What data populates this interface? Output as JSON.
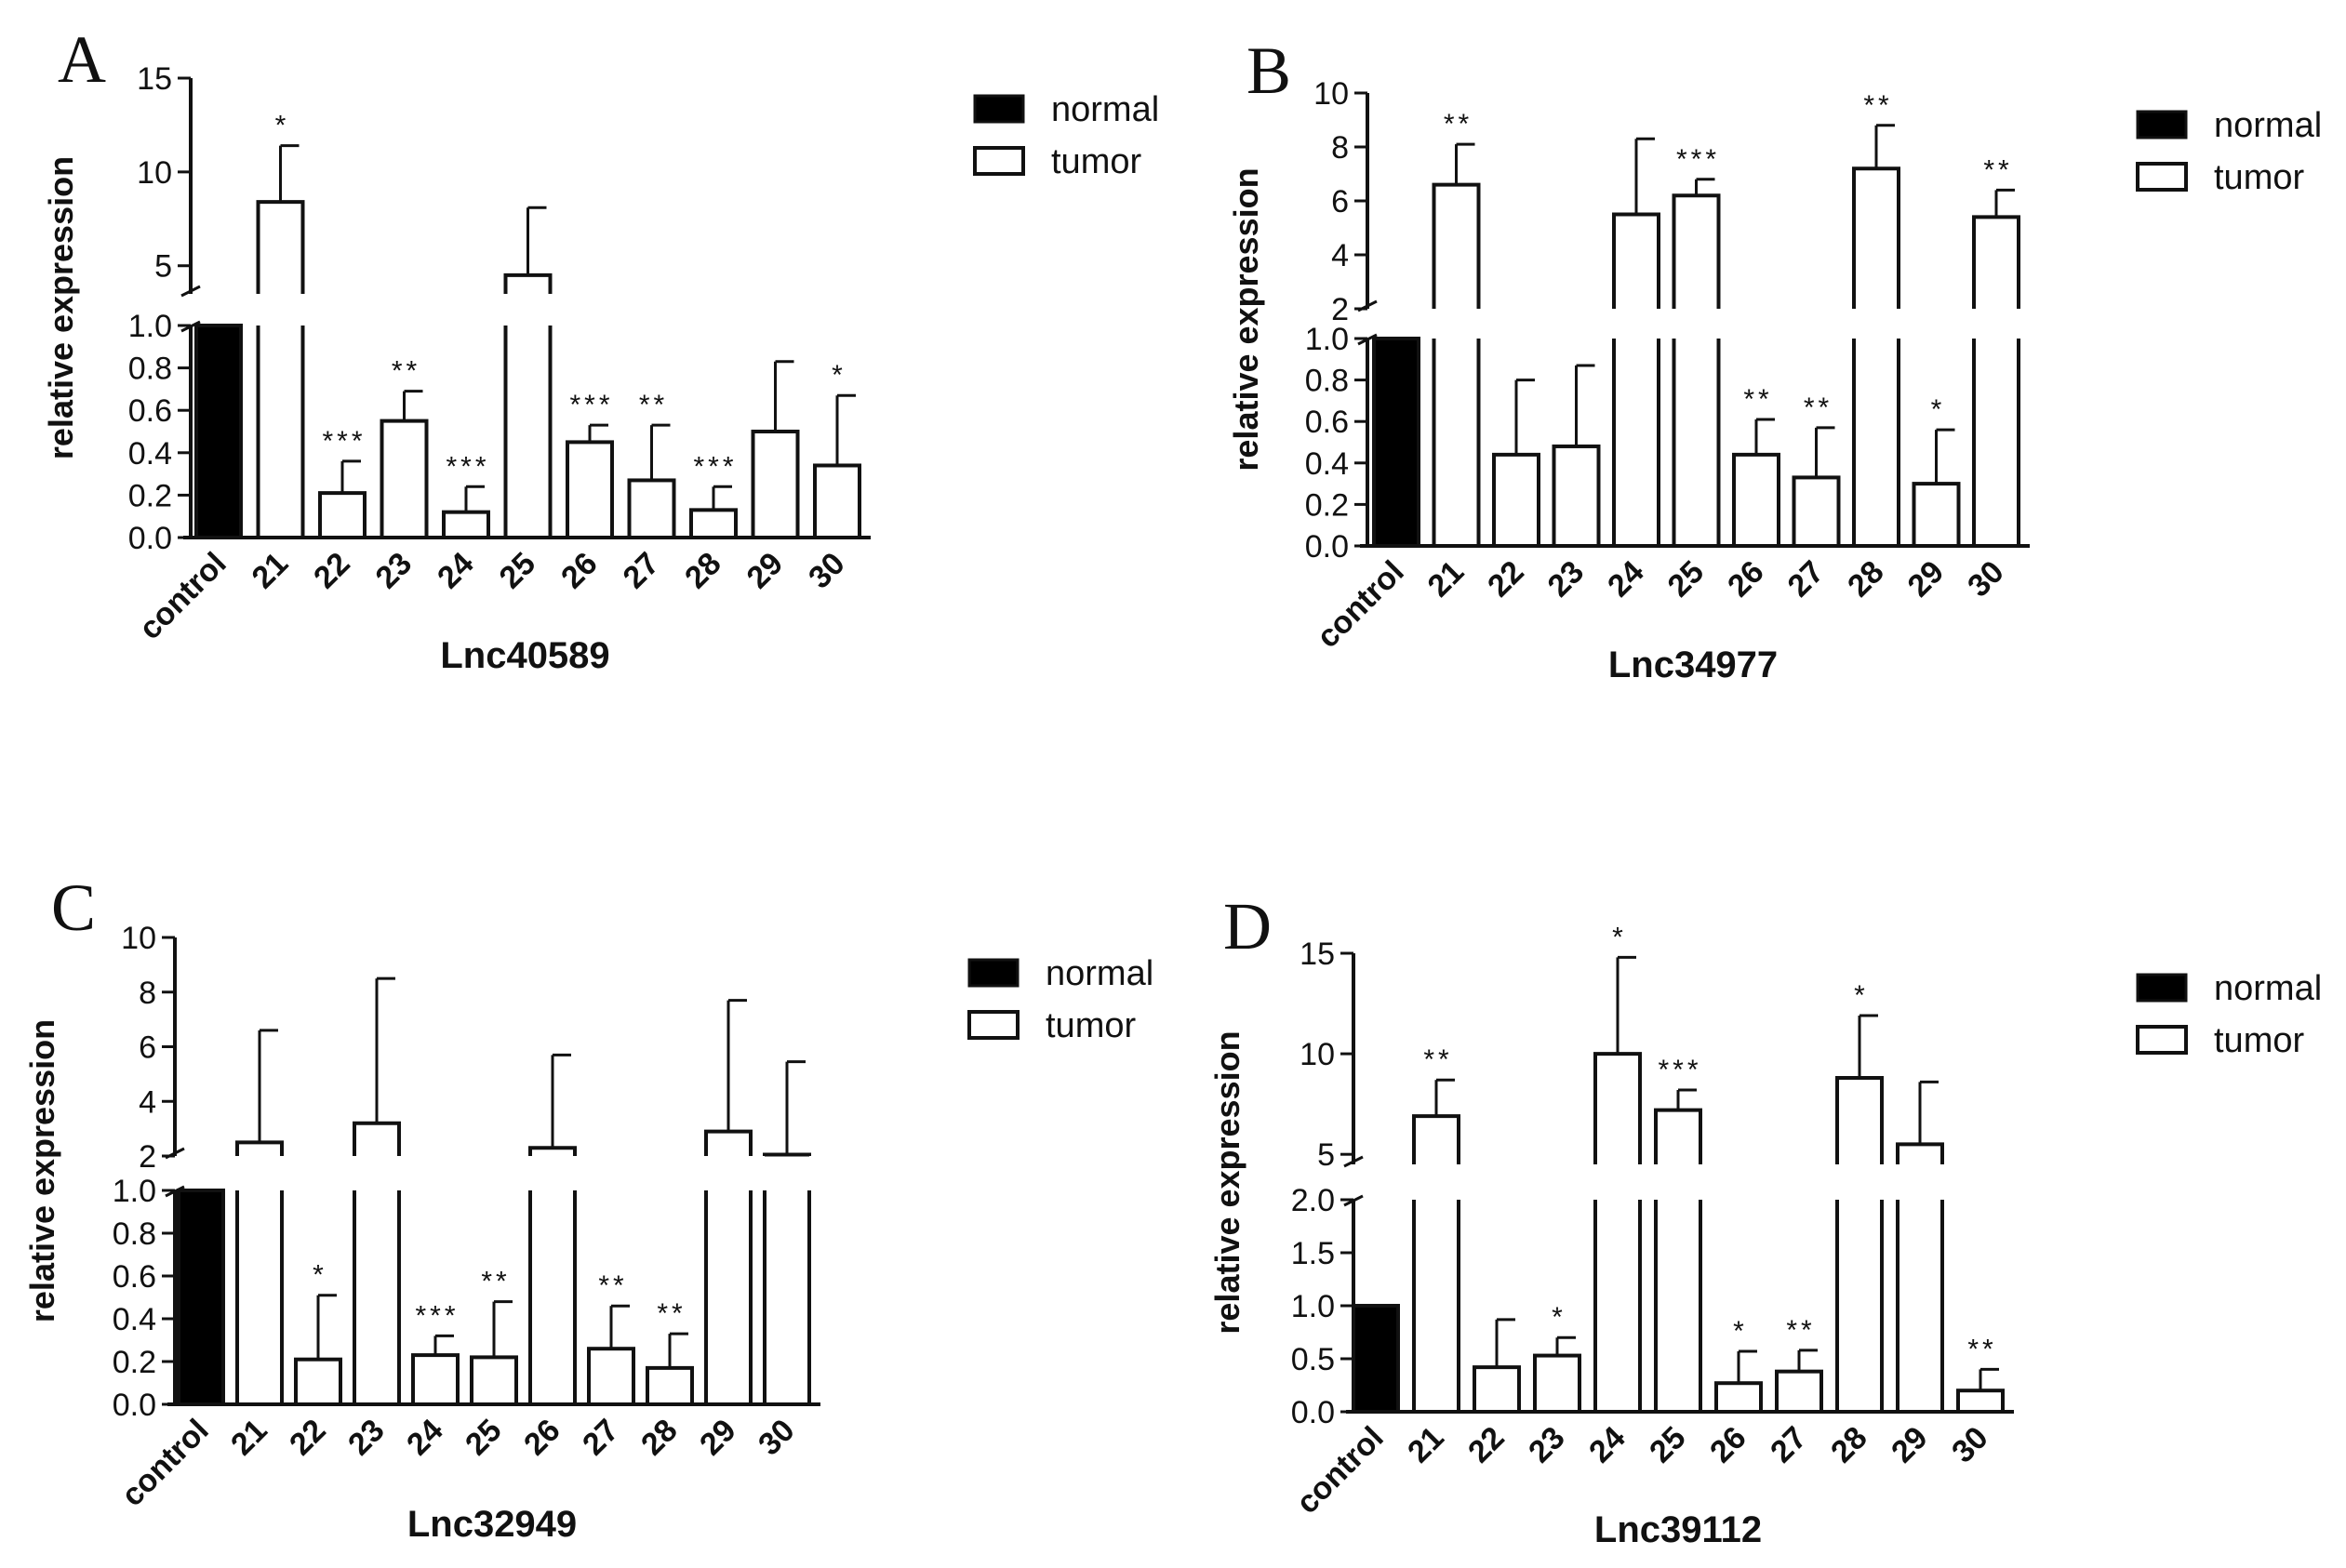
{
  "legend": {
    "normal_label": "normal",
    "tumor_label": "tumor"
  },
  "colors": {
    "normal": "#000000",
    "tumor": "#ffffff",
    "stroke": "#111111"
  },
  "chart_data": [
    {
      "panel": "A",
      "type": "bar",
      "title": "Lnc40589",
      "ylabel": "relative expression",
      "categories": [
        "control",
        "21",
        "22",
        "23",
        "24",
        "25",
        "26",
        "27",
        "28",
        "29",
        "30"
      ],
      "values": [
        1.0,
        8.4,
        0.21,
        0.55,
        0.12,
        4.5,
        0.45,
        0.27,
        0.13,
        0.5,
        0.34
      ],
      "errors": [
        0,
        3.0,
        0.15,
        0.14,
        0.12,
        3.6,
        0.08,
        0.26,
        0.11,
        0.33,
        0.33
      ],
      "significance": [
        "",
        "*",
        "***",
        "**",
        "***",
        "",
        "***",
        "**",
        "***",
        "",
        "*"
      ],
      "groups": [
        "normal",
        "tumor",
        "tumor",
        "tumor",
        "tumor",
        "tumor",
        "tumor",
        "tumor",
        "tumor",
        "tumor",
        "tumor"
      ],
      "lower_axis": {
        "range": [
          0,
          1.0
        ],
        "ticks": [
          "0.0",
          "0.2",
          "0.4",
          "0.6",
          "0.8",
          "1.0"
        ]
      },
      "upper_axis": {
        "range": [
          3.5,
          15
        ],
        "ticks": [
          "5",
          "10",
          "15"
        ]
      }
    },
    {
      "panel": "B",
      "type": "bar",
      "title": "Lnc34977",
      "ylabel": "relative expression",
      "categories": [
        "control",
        "21",
        "22",
        "23",
        "24",
        "25",
        "26",
        "27",
        "28",
        "29",
        "30"
      ],
      "values": [
        1.0,
        6.6,
        0.44,
        0.48,
        5.5,
        6.2,
        0.44,
        0.33,
        7.2,
        0.3,
        5.4
      ],
      "errors": [
        0,
        1.5,
        0.36,
        0.39,
        2.8,
        0.6,
        0.17,
        0.24,
        1.6,
        0.26,
        1.0
      ],
      "significance": [
        "",
        "**",
        "",
        "",
        "",
        "***",
        "**",
        "**",
        "**",
        "*",
        "**"
      ],
      "groups": [
        "normal",
        "tumor",
        "tumor",
        "tumor",
        "tumor",
        "tumor",
        "tumor",
        "tumor",
        "tumor",
        "tumor",
        "tumor"
      ],
      "lower_axis": {
        "range": [
          0,
          1.0
        ],
        "ticks": [
          "0.0",
          "0.2",
          "0.4",
          "0.6",
          "0.8",
          "1.0"
        ]
      },
      "upper_axis": {
        "range": [
          2,
          10
        ],
        "ticks": [
          "2",
          "4",
          "6",
          "8",
          "10"
        ]
      }
    },
    {
      "panel": "C",
      "type": "bar",
      "title": "Lnc32949",
      "ylabel": "relative expression",
      "categories": [
        "control",
        "21",
        "22",
        "23",
        "24",
        "25",
        "26",
        "27",
        "28",
        "29",
        "30"
      ],
      "values": [
        1.0,
        2.5,
        0.21,
        3.2,
        0.23,
        0.22,
        2.3,
        0.26,
        0.17,
        2.9,
        2.05
      ],
      "errors": [
        0,
        4.1,
        0.3,
        5.3,
        0.09,
        0.26,
        3.4,
        0.2,
        0.16,
        4.8,
        3.4
      ],
      "significance": [
        "",
        "",
        "*",
        "",
        "***",
        "**",
        "",
        "**",
        "**",
        "",
        ""
      ],
      "groups": [
        "normal",
        "tumor",
        "tumor",
        "tumor",
        "tumor",
        "tumor",
        "tumor",
        "tumor",
        "tumor",
        "tumor",
        "tumor"
      ],
      "lower_axis": {
        "range": [
          0,
          1.0
        ],
        "ticks": [
          "0.0",
          "0.2",
          "0.4",
          "0.6",
          "0.8",
          "1.0"
        ]
      },
      "upper_axis": {
        "range": [
          2,
          10
        ],
        "ticks": [
          "2",
          "4",
          "6",
          "8",
          "10"
        ]
      }
    },
    {
      "panel": "D",
      "type": "bar",
      "title": "Lnc39112",
      "ylabel": "relative expression",
      "categories": [
        "control",
        "21",
        "22",
        "23",
        "24",
        "25",
        "26",
        "27",
        "28",
        "29",
        "30"
      ],
      "values": [
        1.0,
        6.9,
        0.42,
        0.53,
        10.0,
        7.2,
        0.27,
        0.38,
        8.8,
        5.5,
        0.2
      ],
      "errors": [
        0,
        1.8,
        0.45,
        0.17,
        4.8,
        1.0,
        0.3,
        0.2,
        3.1,
        3.1,
        0.2
      ],
      "significance": [
        "",
        "**",
        "",
        "*",
        "*",
        "***",
        "*",
        "**",
        "*",
        "",
        "**"
      ],
      "groups": [
        "normal",
        "tumor",
        "tumor",
        "tumor",
        "tumor",
        "tumor",
        "tumor",
        "tumor",
        "tumor",
        "tumor",
        "tumor"
      ],
      "lower_axis": {
        "range": [
          0,
          2.0
        ],
        "ticks": [
          "0.0",
          "0.5",
          "1.0",
          "1.5",
          "2.0"
        ]
      },
      "upper_axis": {
        "range": [
          4.5,
          15
        ],
        "ticks": [
          "5",
          "10",
          "15"
        ]
      }
    }
  ]
}
